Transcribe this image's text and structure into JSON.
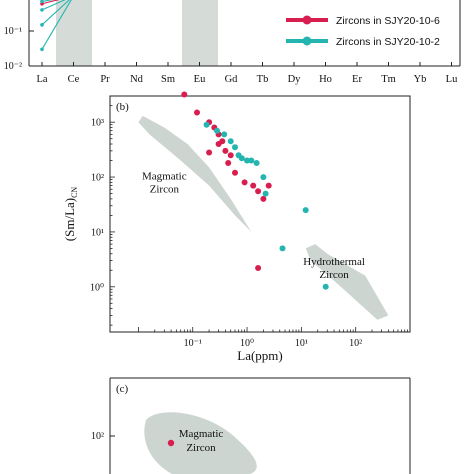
{
  "chart_data": [
    {
      "panel": "a",
      "type": "line",
      "categories": [
        "La",
        "Ce",
        "Pr",
        "Nd",
        "Sm",
        "Eu",
        "Gd",
        "Tb",
        "Dy",
        "Ho",
        "Er",
        "Tm",
        "Yb",
        "Lu"
      ],
      "y_tick_labels": [
        "10⁻¹",
        "10⁻²"
      ],
      "y_scale": "log",
      "shaded_categories": [
        "Ce",
        "Eu"
      ],
      "legend": {
        "placement": "right",
        "entries": [
          "Zircons in SJY20-10-6",
          "Zircons in SJY20-10-2"
        ]
      },
      "series": [
        {
          "name": "Zircons in SJY20-10-6",
          "color": "#d81e4f",
          "lines": [
            {
              "La": 0.6,
              "Ce": 6,
              "Pr": 1.0
            },
            {
              "La": 0.9,
              "Ce": 8,
              "Pr": 1.3
            },
            {
              "La": 1.0,
              "Ce": 7,
              "Pr": 1.5
            }
          ]
        },
        {
          "name": "Zircons in SJY20-10-2",
          "color": "#25b5b0",
          "lines": [
            {
              "La": 0.03,
              "Ce": 6,
              "Pr": 0.8
            },
            {
              "La": 0.15,
              "Ce": 7,
              "Pr": 1.1
            },
            {
              "La": 0.4,
              "Ce": 8,
              "Pr": 1.6
            },
            {
              "La": 0.7,
              "Ce": 9,
              "Pr": 2.0
            }
          ]
        }
      ]
    },
    {
      "panel": "b",
      "panel_label": "(b)",
      "type": "scatter",
      "x_scale": "log",
      "y_scale": "log",
      "xlim": [
        0.003,
        1000
      ],
      "ylim": [
        0.15,
        3000
      ],
      "xlabel": "La(ppm)",
      "ylabel": "(Sm/La)",
      "ylabel_subscript": "CN",
      "x_tick_labels": [
        "10⁻¹",
        "10⁰",
        "10¹",
        "10²"
      ],
      "x_tick_values": [
        0.1,
        1,
        10,
        100
      ],
      "y_tick_labels": [
        "10³",
        "10²",
        "10¹",
        "10⁰"
      ],
      "y_tick_values": [
        1000,
        100,
        10,
        1
      ],
      "regions": [
        {
          "label_lines": [
            "Magmatic",
            "Zircon"
          ],
          "polygon": [
            [
              0.01,
              1000
            ],
            [
              0.016,
              600
            ],
            [
              0.06,
              200
            ],
            [
              0.2,
              70
            ],
            [
              0.6,
              20
            ],
            [
              1.2,
              10
            ],
            [
              0.5,
              40
            ],
            [
              0.2,
              150
            ],
            [
              0.08,
              400
            ],
            [
              0.03,
              800
            ],
            [
              0.012,
              1300
            ]
          ],
          "label_at": [
            0.03,
            90
          ]
        },
        {
          "label_lines": [
            "Hydrothermal",
            "Zircon"
          ],
          "polygon": [
            [
              18,
              6
            ],
            [
              30,
              4
            ],
            [
              150,
              1.6
            ],
            [
              400,
              0.3
            ],
            [
              250,
              0.25
            ],
            [
              60,
              0.9
            ],
            [
              15,
              3
            ],
            [
              12,
              5
            ]
          ],
          "label_at": [
            40,
            2.5
          ]
        }
      ],
      "series": [
        {
          "name": "SJY20-10-6",
          "color": "#d81e4f",
          "x": [
            0.07,
            0.12,
            0.2,
            0.25,
            0.3,
            0.35,
            0.4,
            0.5,
            0.3,
            0.2,
            0.45,
            0.6,
            0.9,
            1.3,
            1.6,
            2.0,
            2.5,
            1.6
          ],
          "y": [
            3200,
            1500,
            1000,
            800,
            600,
            450,
            300,
            250,
            400,
            280,
            180,
            120,
            80,
            70,
            55,
            40,
            70,
            2.2
          ]
        },
        {
          "name": "SJY20-10-2",
          "color": "#25b5b0",
          "x": [
            0.18,
            0.28,
            0.38,
            0.5,
            0.6,
            0.7,
            0.8,
            1.0,
            1.2,
            1.5,
            2.0,
            2.2,
            12,
            4.5,
            28
          ],
          "y": [
            900,
            700,
            600,
            450,
            350,
            250,
            220,
            200,
            200,
            180,
            100,
            50,
            25,
            5,
            1.0
          ]
        }
      ]
    },
    {
      "panel": "c",
      "panel_label": "(c)",
      "type": "scatter",
      "y_scale": "log",
      "y_tick_labels": [
        "10²"
      ],
      "regions": [
        {
          "label_lines": [
            "Magmatic",
            "Zircon"
          ]
        }
      ],
      "series": [
        {
          "name": "SJY20-10-6",
          "color": "#d81e4f",
          "points_visible": 1
        }
      ]
    }
  ]
}
